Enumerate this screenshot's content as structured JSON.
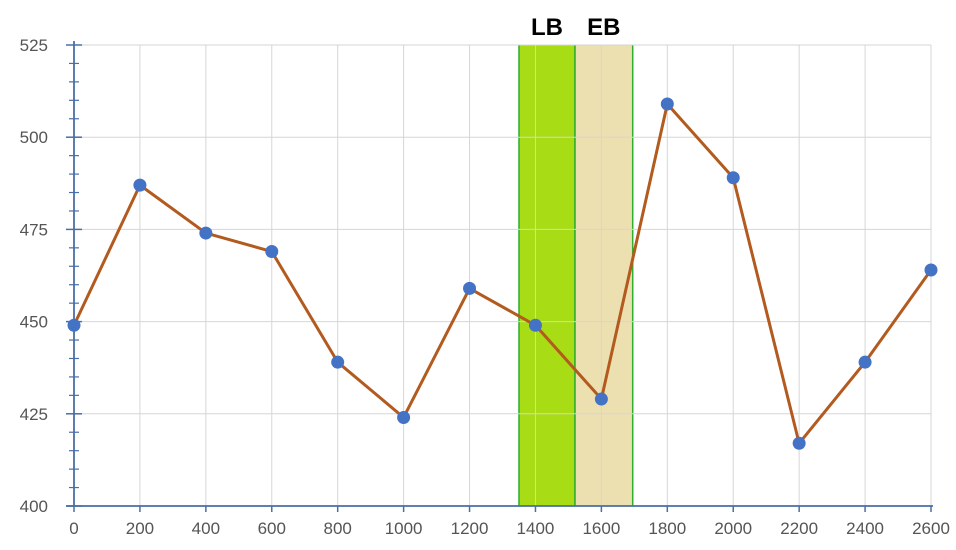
{
  "chart_data": {
    "type": "line",
    "title": "",
    "xlabel": "",
    "ylabel": "",
    "xlim": [
      0,
      2600
    ],
    "ylim": [
      400,
      525
    ],
    "x_ticks": [
      "0",
      "200",
      "400",
      "600",
      "800",
      "1000",
      "1200",
      "1400",
      "1600",
      "1800",
      "2000",
      "2200",
      "2400",
      "2600"
    ],
    "y_ticks": [
      "400",
      "425",
      "450",
      "475",
      "500",
      "525"
    ],
    "grid": true,
    "series": [
      {
        "x": [
          0,
          200,
          400,
          600,
          800,
          1000,
          1200,
          1400,
          1600,
          1800,
          2000,
          2200,
          2400,
          2600
        ],
        "y": [
          449,
          487,
          474,
          469,
          439,
          424,
          459,
          449,
          429,
          509,
          489,
          417,
          439,
          464
        ],
        "line_color": "#b35a1f",
        "marker_color": "#4472c4"
      }
    ],
    "bands": [
      {
        "label": "LB",
        "x_start": 1350,
        "x_end": 1520,
        "color": "#a8dc14",
        "border": "#2eae2e"
      },
      {
        "label": "EB",
        "x_start": 1520,
        "x_end": 1695,
        "color": "#ecdfb0",
        "border": "#2eae2e"
      }
    ]
  }
}
